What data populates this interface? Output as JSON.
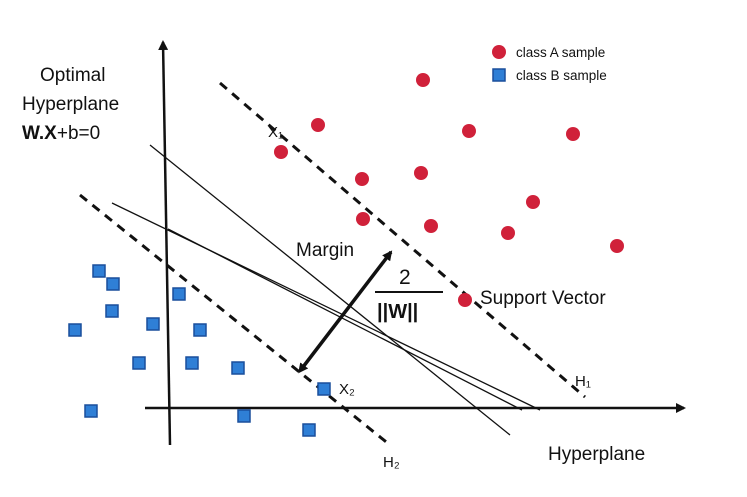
{
  "colors": {
    "class_a": "#d0213a",
    "class_b": "#2f7fd6",
    "class_b_border": "#1a4f9c",
    "line": "#111111"
  },
  "legend": {
    "class_a_label": "class A sample",
    "class_b_label": "class B sample"
  },
  "optimal_hyperplane": {
    "line1": "Optimal",
    "line2": "Hyperplane",
    "equation_bold": "W.X",
    "equation_rest": "+b=0"
  },
  "labels": {
    "x1": "X₁",
    "x2": "X₂",
    "margin": "Margin",
    "margin_numerator": "2",
    "margin_denominator": "||W||",
    "support_vector": "Support Vector",
    "h1": "H₁",
    "h2": "H₂",
    "hyperplane": "Hyperplane"
  }
}
